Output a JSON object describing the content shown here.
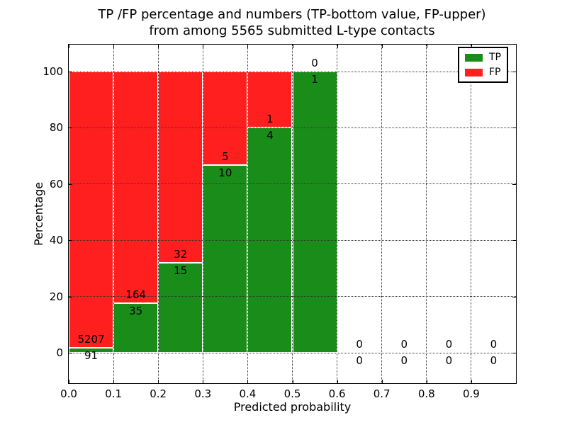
{
  "figure": {
    "background": "#ffffff"
  },
  "chart_data": {
    "type": "bar",
    "stacked": true,
    "units": "percent",
    "title_line1": "TP /FP percentage and numbers (TP-bottom value, FP-upper)",
    "title_line2": "from among 5565 submitted L-type contacts",
    "xlabel": "Predicted probability",
    "ylabel": "Percentage",
    "xlim": [
      0.0,
      1.0
    ],
    "ylim": [
      -10.8,
      109.6
    ],
    "grid": true,
    "grid_color": "#333333",
    "bin_width": 0.1,
    "bin_starts": [
      0.0,
      0.1,
      0.2,
      0.3,
      0.4,
      0.5,
      0.6,
      0.7,
      0.8,
      0.9
    ],
    "xtick_labels": [
      "0.0",
      "0.1",
      "0.2",
      "0.3",
      "0.4",
      "0.5",
      "0.6",
      "0.7",
      "0.8",
      "0.9"
    ],
    "ytick_values": [
      0,
      20,
      40,
      60,
      80,
      100
    ],
    "series": [
      {
        "name": "TP",
        "color": "#1a8c1a",
        "counts": [
          91,
          35,
          15,
          10,
          4,
          1,
          0,
          0,
          0,
          0
        ]
      },
      {
        "name": "FP",
        "color": "#ff1f1f",
        "counts": [
          5207,
          164,
          32,
          5,
          1,
          0,
          0,
          0,
          0,
          0
        ]
      }
    ],
    "tp_percentages": [
      1.72,
      17.59,
      31.91,
      66.67,
      80.0,
      100.0,
      null,
      null,
      null,
      null
    ],
    "label_convention": "TP count below segment boundary, FP count above segment boundary",
    "legend": {
      "position": "upper right",
      "entries": [
        {
          "label": "TP",
          "color": "#1a8c1a"
        },
        {
          "label": "FP",
          "color": "#ff1f1f"
        }
      ]
    }
  }
}
